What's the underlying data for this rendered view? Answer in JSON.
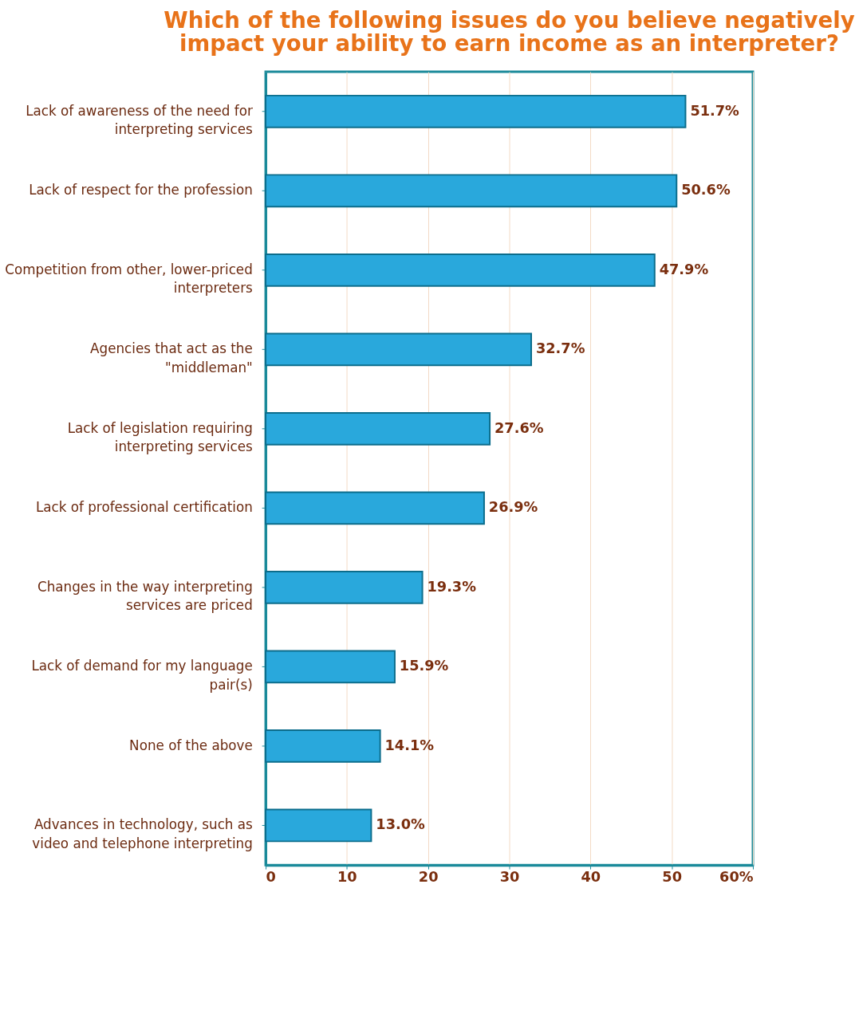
{
  "chart_data": {
    "type": "bar",
    "orientation": "horizontal",
    "title": "Which of the following issues do you believe negatively\nimpact your ability to earn income as an interpreter?",
    "categories": [
      "Lack of awareness  of the need for\ninterpreting  services",
      "Lack of respect  for the profession",
      "Competition from other, lower-priced\ninterpreters",
      "Agencies that act as the\n\"middleman\"",
      "Lack of legislation requiring\ninterpreting services",
      "Lack of professional  certification",
      "Changes  in the way interpreting\nservices are priced",
      "Lack of demand  for my language\npair(s)",
      "None of the above",
      "Advances in technology, such as\nvideo and telephone  interpreting"
    ],
    "values": [
      51.7,
      50.6,
      47.9,
      32.7,
      27.6,
      26.9,
      19.3,
      15.9,
      14.1,
      13.0
    ],
    "value_labels": [
      "51.7%",
      "50.6%",
      "47.9%",
      "32.7%",
      "27.6%",
      "26.9%",
      "19.3%",
      "15.9%",
      "14.1%",
      "13.0%"
    ],
    "color": "#29a8dc",
    "xlim": [
      0,
      60
    ],
    "xticks": [
      0,
      10,
      20,
      30,
      40,
      50,
      {
        "value": 60,
        "label": "60%"
      }
    ],
    "grid": "x"
  }
}
